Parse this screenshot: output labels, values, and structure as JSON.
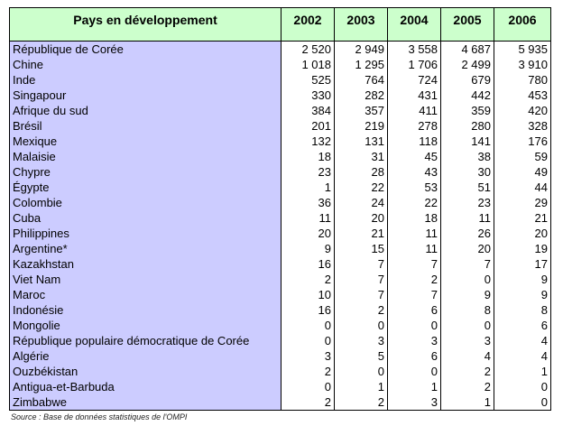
{
  "table": {
    "header": {
      "country_label": "Pays en développement",
      "years": [
        "2002",
        "2003",
        "2004",
        "2005",
        "2006"
      ]
    },
    "rows": [
      {
        "country": "République de Corée",
        "values": [
          "2 520",
          "2 949",
          "3 558",
          "4 687",
          "5 935"
        ]
      },
      {
        "country": "Chine",
        "values": [
          "1 018",
          "1 295",
          "1 706",
          "2 499",
          "3 910"
        ]
      },
      {
        "country": "Inde",
        "values": [
          "525",
          "764",
          "724",
          "679",
          "780"
        ]
      },
      {
        "country": "Singapour",
        "values": [
          "330",
          "282",
          "431",
          "442",
          "453"
        ]
      },
      {
        "country": "Afrique du sud",
        "values": [
          "384",
          "357",
          "411",
          "359",
          "420"
        ]
      },
      {
        "country": "Brésil",
        "values": [
          "201",
          "219",
          "278",
          "280",
          "328"
        ]
      },
      {
        "country": "Mexique",
        "values": [
          "132",
          "131",
          "118",
          "141",
          "176"
        ]
      },
      {
        "country": "Malaisie",
        "values": [
          "18",
          "31",
          "45",
          "38",
          "59"
        ]
      },
      {
        "country": "Chypre",
        "values": [
          "23",
          "28",
          "43",
          "30",
          "49"
        ]
      },
      {
        "country": "Égypte",
        "values": [
          "1",
          "22",
          "53",
          "51",
          "44"
        ]
      },
      {
        "country": "Colombie",
        "values": [
          "36",
          "24",
          "22",
          "23",
          "29"
        ]
      },
      {
        "country": "Cuba",
        "values": [
          "11",
          "20",
          "18",
          "11",
          "21"
        ]
      },
      {
        "country": "Philippines",
        "values": [
          "20",
          "21",
          "11",
          "26",
          "20"
        ]
      },
      {
        "country": "Argentine*",
        "values": [
          "9",
          "15",
          "11",
          "20",
          "19"
        ]
      },
      {
        "country": "Kazakhstan",
        "values": [
          "16",
          "7",
          "7",
          "7",
          "17"
        ]
      },
      {
        "country": "Viet Nam",
        "values": [
          "2",
          "7",
          "2",
          "0",
          "9"
        ]
      },
      {
        "country": "Maroc",
        "values": [
          "10",
          "7",
          "7",
          "9",
          "9"
        ]
      },
      {
        "country": "Indonésie",
        "values": [
          "16",
          "2",
          "6",
          "8",
          "8"
        ]
      },
      {
        "country": "Mongolie",
        "values": [
          "0",
          "0",
          "0",
          "0",
          "6"
        ]
      },
      {
        "country": "République populaire démocratique de Corée",
        "values": [
          "0",
          "3",
          "3",
          "3",
          "4"
        ]
      },
      {
        "country": "Algérie",
        "values": [
          "3",
          "5",
          "6",
          "4",
          "4"
        ]
      },
      {
        "country": "Ouzbékistan",
        "values": [
          "2",
          "0",
          "0",
          "2",
          "1"
        ]
      },
      {
        "country": "Antigua-et-Barbuda",
        "values": [
          "0",
          "1",
          "1",
          "2",
          "0"
        ]
      },
      {
        "country": "Zimbabwe",
        "values": [
          "2",
          "2",
          "3",
          "1",
          "0"
        ]
      }
    ],
    "colors": {
      "header_bg": "#CCFFCC",
      "country_bg": "#CCCCFF",
      "border": "#000000"
    }
  },
  "footer": {
    "source_note": "Source : Base de données statistiques de l'OMPI"
  }
}
